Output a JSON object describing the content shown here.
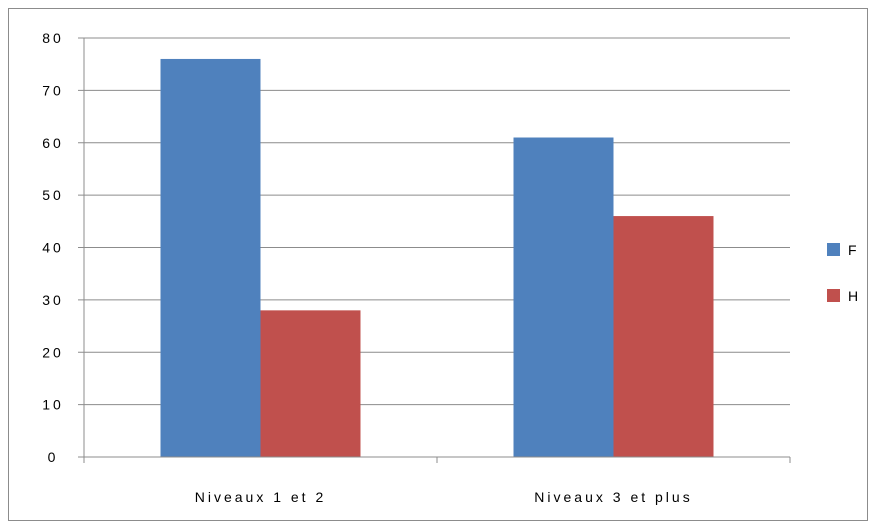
{
  "chart_data": {
    "type": "bar",
    "categories": [
      "Niveaux 1 et 2",
      "Niveaux 3 et plus"
    ],
    "series": [
      {
        "name": "F",
        "values": [
          76,
          61
        ],
        "color": "#4F81BD"
      },
      {
        "name": "H",
        "values": [
          28,
          46
        ],
        "color": "#C0504D"
      }
    ],
    "title": "",
    "xlabel": "",
    "ylabel": "",
    "ylim": [
      0,
      80
    ],
    "yticks": [
      "0",
      "10",
      "20",
      "30",
      "40",
      "50",
      "60",
      "70",
      "80"
    ],
    "grid": true,
    "legend_position": "right"
  }
}
